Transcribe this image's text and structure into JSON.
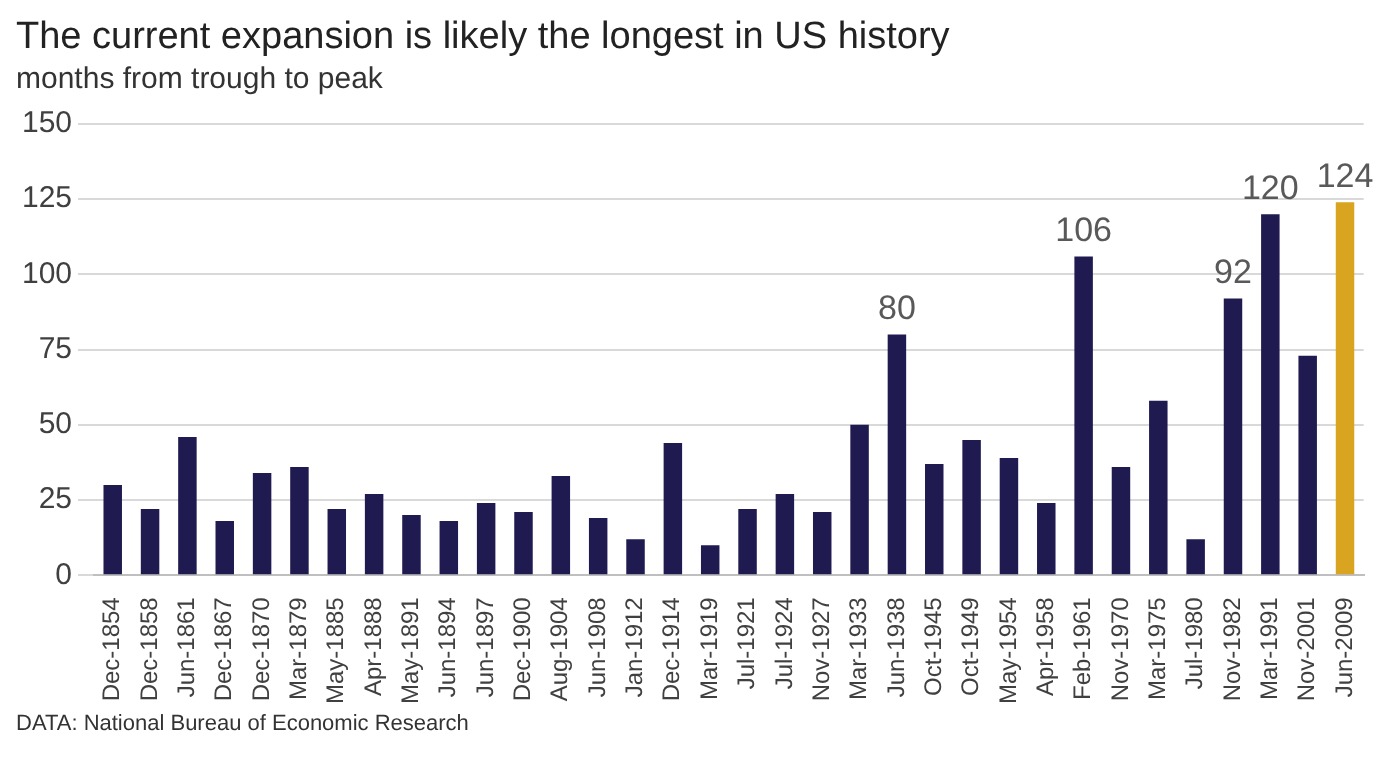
{
  "chart_data": {
    "type": "bar",
    "title": "The current expansion is likely the longest in US history",
    "subtitle": "months from trough to peak",
    "categories": [
      "Dec-1854",
      "Dec-1858",
      "Jun-1861",
      "Dec-1867",
      "Dec-1870",
      "Mar-1879",
      "May-1885",
      "Apr-1888",
      "May-1891",
      "Jun-1894",
      "Jun-1897",
      "Dec-1900",
      "Aug-1904",
      "Jun-1908",
      "Jan-1912",
      "Dec-1914",
      "Mar-1919",
      "Jul-1921",
      "Jul-1924",
      "Nov-1927",
      "Mar-1933",
      "Jun-1938",
      "Oct-1945",
      "Oct-1949",
      "May-1954",
      "Apr-1958",
      "Feb-1961",
      "Nov-1970",
      "Mar-1975",
      "Jul-1980",
      "Nov-1982",
      "Mar-1991",
      "Nov-2001",
      "Jun-2009"
    ],
    "values": [
      30,
      22,
      46,
      18,
      34,
      36,
      22,
      27,
      20,
      18,
      24,
      21,
      33,
      19,
      12,
      44,
      10,
      22,
      27,
      21,
      50,
      80,
      37,
      45,
      39,
      24,
      106,
      36,
      58,
      12,
      92,
      120,
      73,
      124
    ],
    "value_labels": [
      null,
      null,
      null,
      null,
      null,
      null,
      null,
      null,
      null,
      null,
      null,
      null,
      null,
      null,
      null,
      null,
      null,
      null,
      null,
      null,
      null,
      "80",
      null,
      null,
      null,
      null,
      "106",
      null,
      null,
      null,
      "92",
      "120",
      null,
      "124"
    ],
    "colors": [
      "#1f1a4f",
      "#1f1a4f",
      "#1f1a4f",
      "#1f1a4f",
      "#1f1a4f",
      "#1f1a4f",
      "#1f1a4f",
      "#1f1a4f",
      "#1f1a4f",
      "#1f1a4f",
      "#1f1a4f",
      "#1f1a4f",
      "#1f1a4f",
      "#1f1a4f",
      "#1f1a4f",
      "#1f1a4f",
      "#1f1a4f",
      "#1f1a4f",
      "#1f1a4f",
      "#1f1a4f",
      "#1f1a4f",
      "#1f1a4f",
      "#1f1a4f",
      "#1f1a4f",
      "#1f1a4f",
      "#1f1a4f",
      "#1f1a4f",
      "#1f1a4f",
      "#1f1a4f",
      "#1f1a4f",
      "#1f1a4f",
      "#1f1a4f",
      "#1f1a4f",
      "#d9a521"
    ],
    "ylim": [
      0,
      150
    ],
    "yticks": [
      0,
      25,
      50,
      75,
      100,
      125,
      150
    ],
    "grid": "y",
    "legend": false,
    "annotations": [
      "DATA: National Bureau of Economic Research"
    ]
  }
}
